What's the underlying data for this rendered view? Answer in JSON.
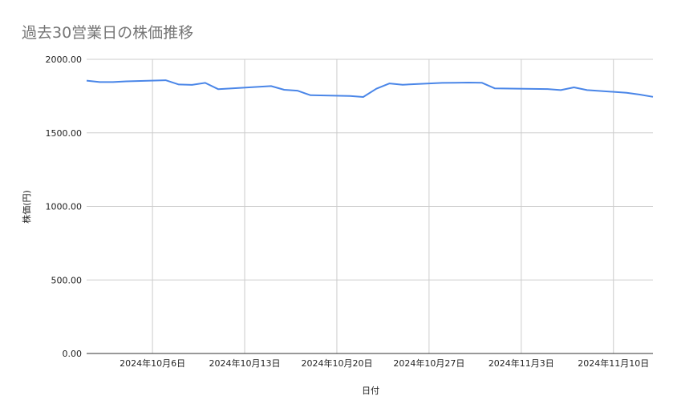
{
  "chart_data": {
    "type": "line",
    "title": "過去30営業日の株価推移",
    "xlabel": "日付",
    "ylabel": "株価(円)",
    "ylim": [
      0,
      2000
    ],
    "yticks": [
      "0.00",
      "500.00",
      "1000.00",
      "1500.00",
      "2000.00"
    ],
    "xlim": [
      "2024-10-01",
      "2024-11-13"
    ],
    "xticks": [
      {
        "date": "2024-10-06",
        "label": "2024年10月6日"
      },
      {
        "date": "2024-10-13",
        "label": "2024年10月13日"
      },
      {
        "date": "2024-10-20",
        "label": "2024年10月20日"
      },
      {
        "date": "2024-10-27",
        "label": "2024年10月27日"
      },
      {
        "date": "2024-11-03",
        "label": "2024年11月3日"
      },
      {
        "date": "2024-11-10",
        "label": "2024年11月10日"
      }
    ],
    "grid": true,
    "line_color": "#4a86e8",
    "x": [
      "2024-10-01",
      "2024-10-02",
      "2024-10-03",
      "2024-10-04",
      "2024-10-07",
      "2024-10-08",
      "2024-10-09",
      "2024-10-10",
      "2024-10-11",
      "2024-10-15",
      "2024-10-16",
      "2024-10-17",
      "2024-10-18",
      "2024-10-21",
      "2024-10-22",
      "2024-10-23",
      "2024-10-24",
      "2024-10-25",
      "2024-10-28",
      "2024-10-29",
      "2024-10-30",
      "2024-10-31",
      "2024-11-01",
      "2024-11-05",
      "2024-11-06",
      "2024-11-07",
      "2024-11-08",
      "2024-11-11",
      "2024-11-12",
      "2024-11-13"
    ],
    "values": [
      1855,
      1845,
      1845,
      1850,
      1858,
      1829,
      1826,
      1840,
      1797,
      1818,
      1793,
      1787,
      1756,
      1751,
      1744,
      1800,
      1836,
      1827,
      1840,
      1841,
      1842,
      1841,
      1802,
      1798,
      1791,
      1809,
      1791,
      1773,
      1760,
      1745
    ]
  }
}
